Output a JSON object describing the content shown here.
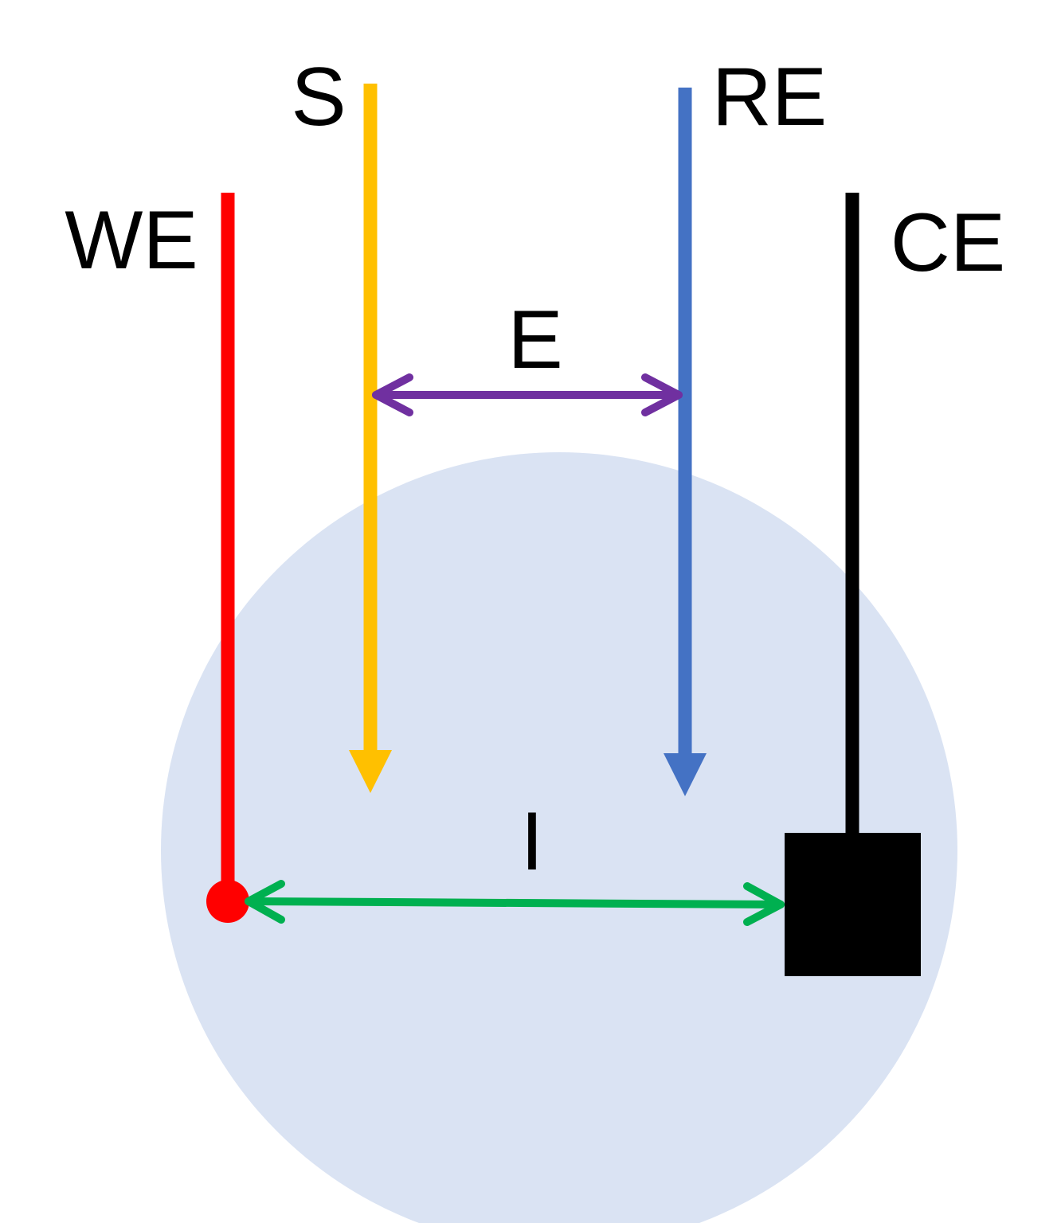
{
  "labels": {
    "we": "WE",
    "s": "S",
    "re": "RE",
    "ce": "CE",
    "e": "E",
    "i": "I"
  },
  "colors": {
    "electrolyte": "#DAE3F3",
    "working_electrode": "#FF0000",
    "sense": "#FFC000",
    "reference_electrode": "#4472C4",
    "counter_electrode": "#000000",
    "potential_arrow": "#7030A0",
    "current_arrow": "#00B050"
  }
}
